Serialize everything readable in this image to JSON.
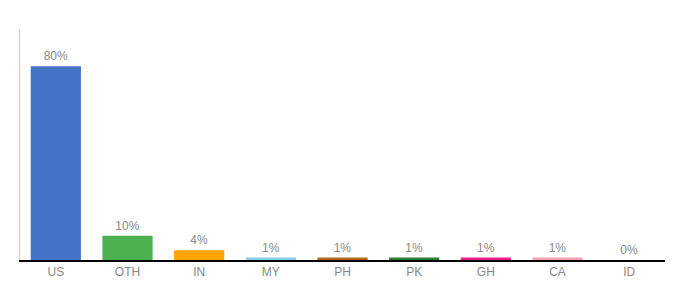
{
  "chart_data": {
    "type": "bar",
    "categories": [
      "US",
      "OTH",
      "IN",
      "MY",
      "PH",
      "PK",
      "GH",
      "CA",
      "ID"
    ],
    "values": [
      80,
      10,
      4,
      1,
      1,
      1,
      1,
      1,
      0
    ],
    "value_labels": [
      "80%",
      "10%",
      "4%",
      "1%",
      "1%",
      "1%",
      "1%",
      "1%",
      "0%"
    ],
    "colors": [
      "#4472c4",
      "#4caf50",
      "#ffa500",
      "#87ceeb",
      "#b5651d",
      "#2e7d32",
      "#e91e8c",
      "#f4a0b5",
      "#cccccc"
    ],
    "ylim": [
      0,
      95
    ],
    "data_labels": true,
    "tick_labels": "x",
    "grid": false
  }
}
